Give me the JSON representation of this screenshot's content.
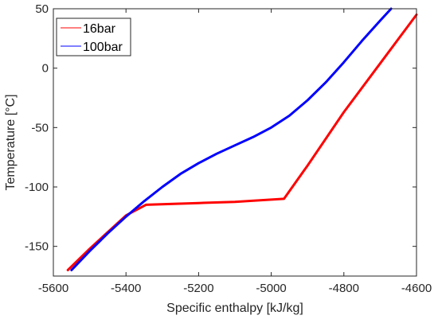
{
  "chart_data": {
    "type": "line",
    "title": "",
    "xlabel": "Specific enthalpy [kJ/kg]",
    "ylabel": "Temperature [°C]",
    "xlim": [
      -5600,
      -4600
    ],
    "ylim": [
      -175,
      50
    ],
    "xticks": [
      -5600,
      -5400,
      -5200,
      -5000,
      -4800,
      -4600
    ],
    "xtick_labels": [
      "-5600",
      "-5400",
      "-5200",
      "-5000",
      "-4800",
      "-4600"
    ],
    "yticks": [
      -150,
      -100,
      -50,
      0,
      50
    ],
    "ytick_labels": [
      "-150",
      "-100",
      "-50",
      "0",
      "50"
    ],
    "grid": false,
    "legend_position": "top-left",
    "series": [
      {
        "name": "16bar",
        "color": "#ff0000",
        "x": [
          -5560,
          -5500,
          -5450,
          -5400,
          -5345,
          -5200,
          -5100,
          -4965,
          -4900,
          -4800,
          -4700,
          -4600
        ],
        "y": [
          -170,
          -152,
          -138,
          -124,
          -115,
          -113.5,
          -112.5,
          -110,
          -82,
          -37,
          4,
          45
        ]
      },
      {
        "name": "100bar",
        "color": "#0000ff",
        "x": [
          -5550,
          -5500,
          -5450,
          -5400,
          -5350,
          -5300,
          -5250,
          -5200,
          -5150,
          -5100,
          -5050,
          -5000,
          -4950,
          -4900,
          -4850,
          -4800,
          -4750,
          -4700,
          -4670
        ],
        "y": [
          -170,
          -154,
          -139,
          -125,
          -112,
          -100,
          -89,
          -80,
          -72,
          -65,
          -58,
          -50,
          -40,
          -27,
          -12,
          5,
          23,
          40,
          50
        ]
      }
    ]
  }
}
